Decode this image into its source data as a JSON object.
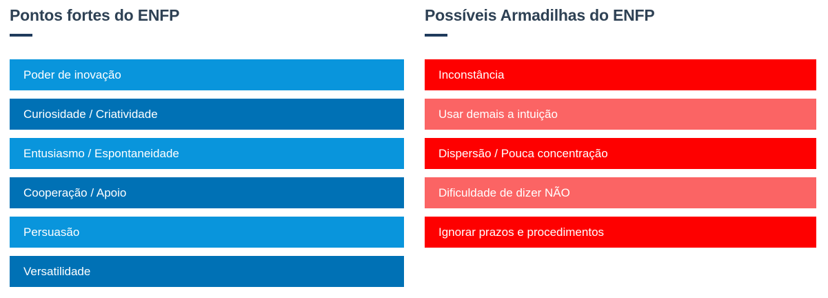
{
  "colors": {
    "header_text": "#2e4154",
    "header_underline": "#1f3b5c",
    "blue_light": "#0995dc",
    "blue_dark": "#0071b5",
    "red_bright": "#fe0000",
    "red_light": "#fb6464",
    "bar_text": "#ffffff",
    "background": "#ffffff"
  },
  "left_column": {
    "title": "Pontos fortes do ENFP",
    "items": [
      {
        "label": "Poder de inovação",
        "tone": "blue-light"
      },
      {
        "label": "Curiosidade / Criatividade",
        "tone": "blue-dark"
      },
      {
        "label": "Entusiasmo / Espontaneidade",
        "tone": "blue-light"
      },
      {
        "label": "Cooperação / Apoio",
        "tone": "blue-dark"
      },
      {
        "label": "Persuasão",
        "tone": "blue-light"
      },
      {
        "label": "Versatilidade",
        "tone": "blue-dark"
      }
    ]
  },
  "right_column": {
    "title": "Possíveis Armadilhas do ENFP",
    "items": [
      {
        "label": "Inconstância",
        "tone": "red-bright"
      },
      {
        "label": "Usar demais a intuição",
        "tone": "red-light"
      },
      {
        "label": "Dispersão / Pouca concentração",
        "tone": "red-bright"
      },
      {
        "label": "Dificuldade de dizer NÃO",
        "tone": "red-light"
      },
      {
        "label": "Ignorar prazos e procedimentos",
        "tone": "red-bright"
      }
    ]
  }
}
